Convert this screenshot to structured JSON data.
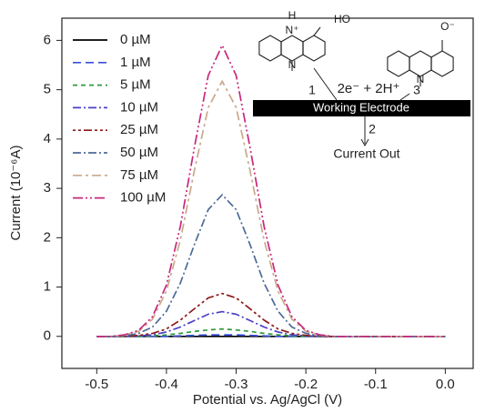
{
  "chart_data": {
    "type": "line",
    "x_label": "Potential vs. Ag/AgCl (V)",
    "y_label": "Current (10⁻⁶A)",
    "x": [
      -0.5,
      -0.48,
      -0.46,
      -0.44,
      -0.42,
      -0.4,
      -0.38,
      -0.36,
      -0.34,
      -0.32,
      -0.3,
      -0.28,
      -0.26,
      -0.24,
      -0.22,
      -0.2,
      -0.18,
      -0.16,
      -0.14,
      -0.12,
      -0.1,
      -0.08,
      -0.06,
      -0.04,
      -0.02,
      0
    ],
    "series": [
      {
        "name": "0 µM",
        "color": "#000000",
        "values": [
          0,
          0,
          0,
          0,
          0,
          0,
          0,
          0,
          0,
          0,
          0,
          0,
          0,
          0,
          0,
          0,
          0,
          0,
          0,
          0,
          0,
          0,
          0,
          0,
          0,
          0
        ]
      },
      {
        "name": "1 µM",
        "color": "#3a4fd6",
        "values": [
          0,
          0,
          0,
          0,
          0,
          0,
          0.01,
          0.02,
          0.03,
          0.03,
          0.03,
          0.02,
          0.01,
          0,
          0,
          0,
          0,
          0,
          0,
          0,
          0,
          0,
          0,
          0,
          0,
          0
        ]
      },
      {
        "name": "5 µM",
        "color": "#2f9a3c",
        "values": [
          0,
          0,
          0,
          0,
          0.01,
          0.03,
          0.06,
          0.1,
          0.13,
          0.15,
          0.13,
          0.1,
          0.06,
          0.03,
          0.01,
          0,
          0,
          0,
          0,
          0,
          0,
          0,
          0,
          0,
          0,
          0
        ]
      },
      {
        "name": "10 µM",
        "color": "#4a3fc4",
        "values": [
          0,
          0,
          0,
          0.01,
          0.03,
          0.09,
          0.19,
          0.32,
          0.45,
          0.5,
          0.45,
          0.32,
          0.19,
          0.09,
          0.03,
          0.01,
          0,
          0,
          0,
          0,
          0,
          0,
          0,
          0,
          0,
          0
        ]
      },
      {
        "name": "25 µM",
        "color": "#8c1a1a",
        "values": [
          0,
          0,
          0,
          0.02,
          0.06,
          0.15,
          0.33,
          0.56,
          0.78,
          0.87,
          0.78,
          0.56,
          0.33,
          0.15,
          0.06,
          0.02,
          0,
          0,
          0,
          0,
          0,
          0,
          0,
          0,
          0,
          0
        ]
      },
      {
        "name": "50 µM",
        "color": "#4d6a98",
        "values": [
          0,
          0,
          0.01,
          0.06,
          0.19,
          0.51,
          1.08,
          1.86,
          2.57,
          2.87,
          2.57,
          1.86,
          1.08,
          0.51,
          0.19,
          0.06,
          0.01,
          0,
          0,
          0,
          0,
          0,
          0,
          0,
          0,
          0
        ]
      },
      {
        "name": "75 µM",
        "color": "#c9a98b",
        "values": [
          0,
          0,
          0.03,
          0.1,
          0.35,
          0.92,
          1.95,
          3.36,
          4.64,
          5.17,
          4.64,
          3.36,
          1.95,
          0.92,
          0.35,
          0.1,
          0.03,
          0,
          0,
          0,
          0,
          0,
          0,
          0,
          0,
          0
        ]
      },
      {
        "name": "100 µM",
        "color": "#c8287c",
        "values": [
          0,
          0,
          0.03,
          0.12,
          0.4,
          1.04,
          2.23,
          3.83,
          5.29,
          5.9,
          5.29,
          3.83,
          2.23,
          1.04,
          0.4,
          0.12,
          0.03,
          0,
          0,
          0,
          0,
          0,
          0,
          0,
          0,
          0
        ]
      }
    ],
    "xlim": [
      -0.55,
      0.04
    ],
    "ylim": [
      -0.65,
      6.45
    ],
    "xticks": [
      -0.5,
      -0.4,
      -0.3,
      -0.2,
      -0.1,
      {
        "value": 0,
        "label": "0.0"
      }
    ],
    "yticks": [
      0,
      1,
      2,
      3,
      4,
      5,
      6
    ],
    "legend": "upper left",
    "inset": {
      "electrode": "Working Electrode",
      "output": "Current Out",
      "steps": [
        "1",
        "2",
        "3"
      ],
      "reaction": "2e⁻ + 2H⁺",
      "labels": [
        "H",
        "N⁺",
        "HO",
        "N",
        "O⁻",
        "N"
      ]
    }
  }
}
